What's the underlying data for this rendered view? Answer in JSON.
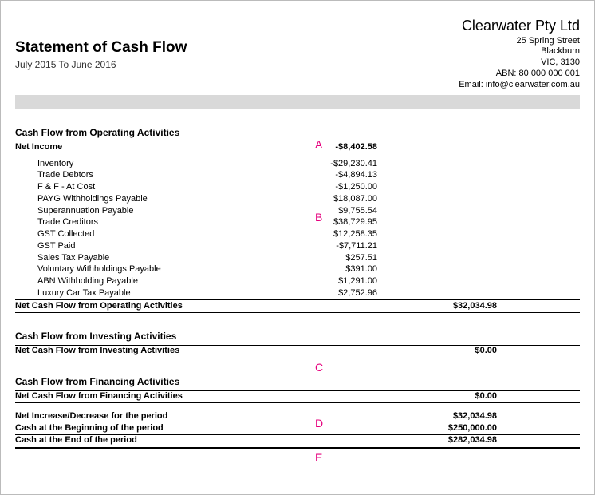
{
  "header": {
    "title": "Statement of Cash Flow",
    "period": "July 2015 To June 2016",
    "company_name": "Clearwater Pty Ltd",
    "address_1": "25 Spring Street",
    "address_2": "Blackburn",
    "address_3": "VIC, 3130",
    "abn_label": "ABN: 80 000 000 001",
    "email_label": "Email: info@clearwater.com.au"
  },
  "operating": {
    "section_title": "Cash Flow from Operating Activities",
    "net_income_label": "Net Income",
    "net_income_value": "-$8,402.58",
    "items": [
      {
        "label": "Inventory",
        "value": "-$29,230.41"
      },
      {
        "label": "Trade Debtors",
        "value": "-$4,894.13"
      },
      {
        "label": "F & F  - At Cost",
        "value": "-$1,250.00"
      },
      {
        "label": "PAYG Withholdings Payable",
        "value": "$18,087.00"
      },
      {
        "label": "Superannuation Payable",
        "value": "$9,755.54"
      },
      {
        "label": "Trade Creditors",
        "value": "$38,729.95"
      },
      {
        "label": "GST Collected",
        "value": "$12,258.35"
      },
      {
        "label": "GST Paid",
        "value": "-$7,711.21"
      },
      {
        "label": "Sales Tax Payable",
        "value": "$257.51"
      },
      {
        "label": "Voluntary Withholdings Payable",
        "value": "$391.00"
      },
      {
        "label": "ABN Withholding Payable",
        "value": "$1,291.00"
      },
      {
        "label": "Luxury Car Tax Payable",
        "value": "$2,752.96"
      }
    ],
    "net_label": "Net Cash Flow from Operating Activities",
    "net_value": "$32,034.98"
  },
  "investing": {
    "section_title": "Cash Flow from Investing Activities",
    "net_label": "Net Cash Flow from Investing Activities",
    "net_value": "$0.00"
  },
  "financing": {
    "section_title": "Cash Flow from Financing Activities",
    "net_label": "Net Cash Flow from Financing Activities",
    "net_value": "$0.00"
  },
  "summary": {
    "inc_label": "Net Increase/Decrease for the period",
    "inc_value": "$32,034.98",
    "begin_label": "Cash at the Beginning of the period",
    "begin_value": "$250,000.00",
    "end_label": "Cash at the End of the period",
    "end_value": "$282,034.98"
  },
  "annotations": {
    "a": "A",
    "b": "B",
    "c": "C",
    "d": "D",
    "e": "E",
    "color": "#e6007e"
  },
  "colors": {
    "grey_bar": "#d9d9d9",
    "border": "#000000",
    "page_border": "#bbbbbb"
  }
}
